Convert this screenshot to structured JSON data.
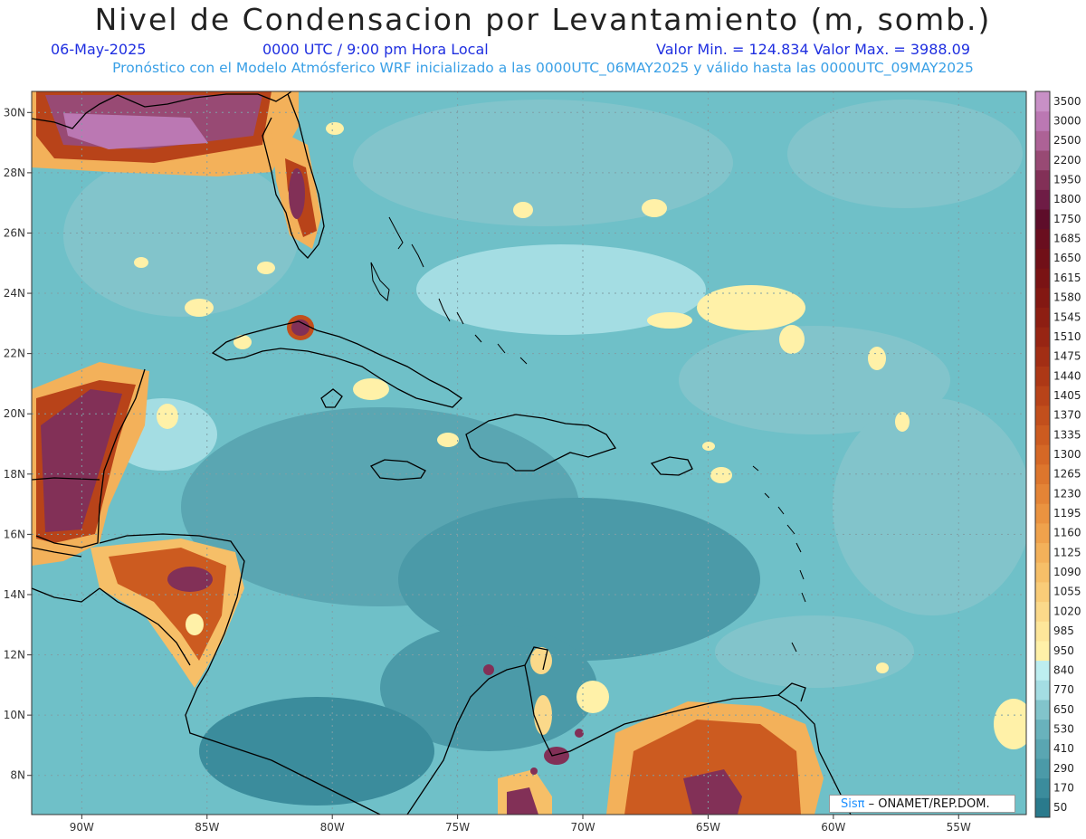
{
  "header": {
    "title": "Nivel de Condensacion por Levantamiento (m, somb.)",
    "date": "06-May-2025",
    "time": "0000 UTC / 9:00 pm Hora Local",
    "minmax": "Valor Min. = 124.834   Valor Max. = 3988.09",
    "subtitle": "Pronóstico con el Modelo Atmósferico WRF inicializado a las 0000UTC_06MAY2025 y válido hasta las  0000UTC_09MAY2025"
  },
  "map": {
    "lon_range": [
      -92,
      -52.3
    ],
    "lat_range": [
      6.7,
      30.7
    ],
    "lon_ticks": [
      "90W",
      "85W",
      "80W",
      "75W",
      "70W",
      "65W",
      "60W",
      "55W"
    ],
    "lon_values": [
      -90,
      -85,
      -80,
      -75,
      -70,
      -65,
      -60,
      -55
    ],
    "lat_ticks": [
      "8N",
      "10N",
      "12N",
      "14N",
      "16N",
      "18N",
      "20N",
      "22N",
      "24N",
      "26N",
      "28N",
      "30N"
    ],
    "lat_values": [
      8,
      10,
      12,
      14,
      16,
      18,
      20,
      22,
      24,
      26,
      28,
      30
    ],
    "background_color": "#6fc0c8",
    "grid": "dotted"
  },
  "colorbar": {
    "labels": [
      "50",
      "170",
      "290",
      "410",
      "530",
      "650",
      "770",
      "840",
      "950",
      "985",
      "1020",
      "1055",
      "1090",
      "1125",
      "1160",
      "1195",
      "1230",
      "1265",
      "1300",
      "1335",
      "1370",
      "1405",
      "1440",
      "1475",
      "1510",
      "1545",
      "1580",
      "1615",
      "1650",
      "1685",
      "1750",
      "1800",
      "1950",
      "2200",
      "2500",
      "3000",
      "3500"
    ],
    "colors": [
      "#2a7a8c",
      "#3b8c9c",
      "#4b9aa8",
      "#5aa6b2",
      "#69b2bc",
      "#82c4cb",
      "#a4dde3",
      "#bdeef0",
      "#fff1a8",
      "#fde69a",
      "#fbd98a",
      "#f9cc78",
      "#f6bf68",
      "#f3b15a",
      "#efa24c",
      "#ea9340",
      "#e48436",
      "#dd762d",
      "#d56826",
      "#cc5b20",
      "#c24f1c",
      "#b84319",
      "#ad3816",
      "#a22e14",
      "#972513",
      "#8d1e12",
      "#831812",
      "#7a1314",
      "#711018",
      "#6a0e1f",
      "#5e0d2a",
      "#6e1c45",
      "#823057",
      "#984a74",
      "#ad6296",
      "#bb78b3",
      "#c890c6"
    ]
  },
  "credit": {
    "sis": "Sisπ",
    "org": "– ONAMET/REP.DOM."
  }
}
